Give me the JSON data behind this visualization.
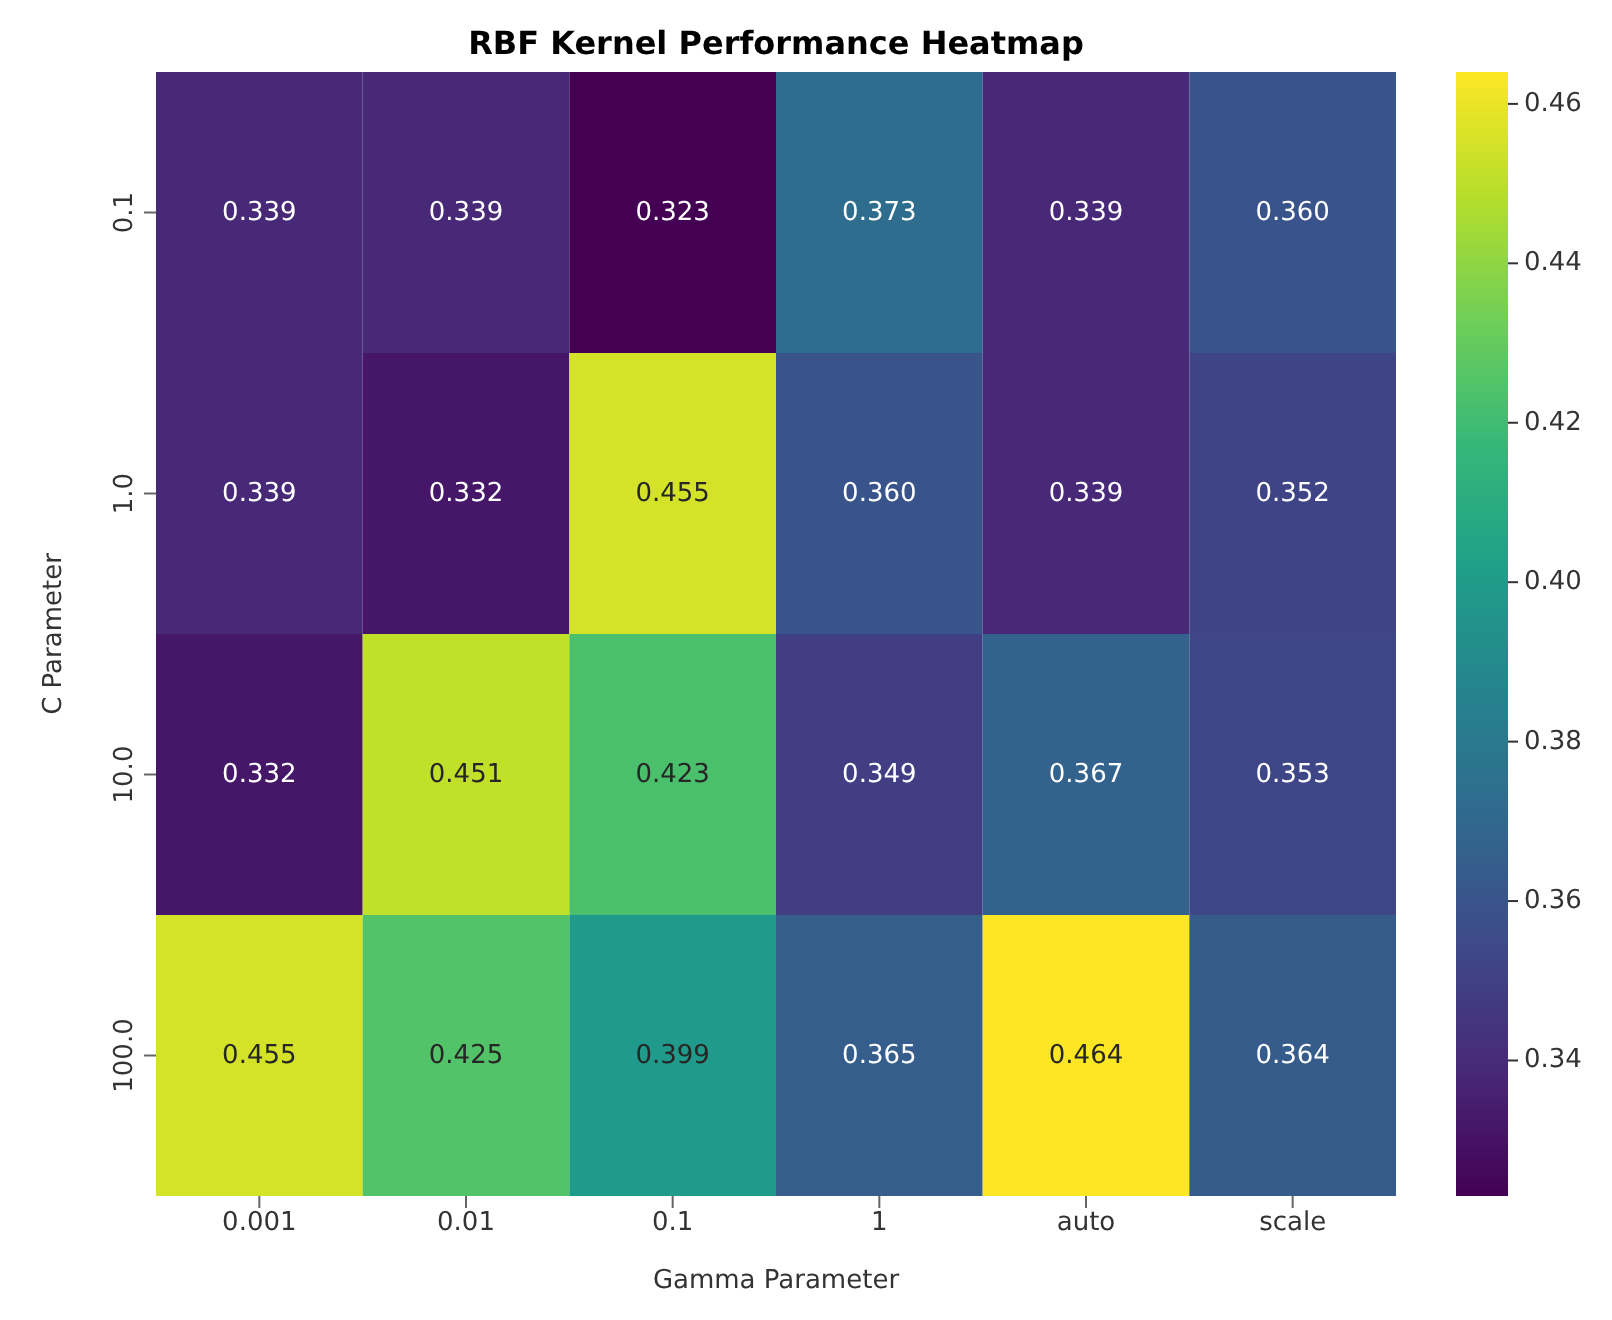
{
  "chart_data": {
    "type": "heatmap",
    "title": "RBF Kernel Performance Heatmap",
    "xlabel": "Gamma Parameter",
    "ylabel": "C Parameter",
    "categories": [
      "0.001",
      "0.01",
      "0.1",
      "1",
      "auto",
      "scale"
    ],
    "y_categories": [
      "0.1",
      "1.0",
      "10.0",
      "100.0"
    ],
    "cells": [
      [
        0.339,
        0.339,
        0.323,
        0.373,
        0.339,
        0.36
      ],
      [
        0.339,
        0.332,
        0.455,
        0.36,
        0.339,
        0.352
      ],
      [
        0.332,
        0.451,
        0.423,
        0.349,
        0.367,
        0.353
      ],
      [
        0.455,
        0.425,
        0.399,
        0.365,
        0.464,
        0.364
      ]
    ],
    "cell_labels": [
      [
        "0.339",
        "0.339",
        "0.323",
        "0.373",
        "0.339",
        "0.360"
      ],
      [
        "0.339",
        "0.332",
        "0.455",
        "0.360",
        "0.339",
        "0.352"
      ],
      [
        "0.332",
        "0.451",
        "0.423",
        "0.349",
        "0.367",
        "0.353"
      ],
      [
        "0.455",
        "0.425",
        "0.399",
        "0.365",
        "0.464",
        "0.364"
      ]
    ],
    "clim": [
      0.323,
      0.464
    ],
    "cticks": [
      0.34,
      0.36,
      0.38,
      {
        "value": 0.4,
        "label": "0.40"
      },
      0.42,
      0.44,
      0.46
    ]
  }
}
